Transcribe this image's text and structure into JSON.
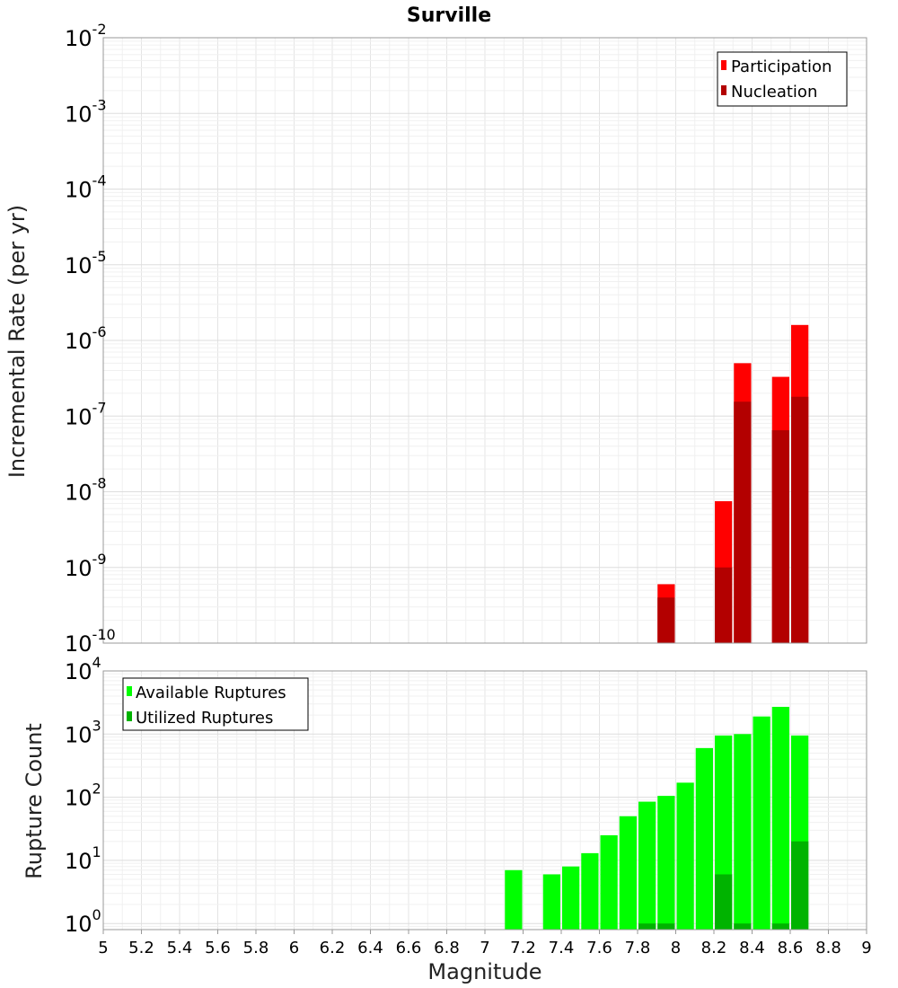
{
  "chart_data": [
    {
      "type": "bar",
      "title": "Surville",
      "xlabel": "",
      "ylabel": "Incremental Rate (per yr)",
      "yscale": "log",
      "ylim": [
        1e-10,
        0.01
      ],
      "xlim": [
        5,
        9
      ],
      "bin_width": 0.1,
      "grid": true,
      "legend": "top-right",
      "ytick_exponents": [
        -2,
        -3,
        -4,
        -5,
        -6,
        -7,
        -8,
        -9,
        -10
      ],
      "series": [
        {
          "name": "Participation",
          "color": "#ff0000",
          "points": [
            {
              "x": 7.95,
              "y": 6e-10
            },
            {
              "x": 8.25,
              "y": 7.5e-09
            },
            {
              "x": 8.35,
              "y": 5e-07
            },
            {
              "x": 8.55,
              "y": 3.3e-07
            },
            {
              "x": 8.65,
              "y": 1.6e-06
            }
          ]
        },
        {
          "name": "Nucleation",
          "color": "#b30000",
          "points": [
            {
              "x": 7.95,
              "y": 4e-10
            },
            {
              "x": 8.25,
              "y": 1e-09
            },
            {
              "x": 8.35,
              "y": 1.55e-07
            },
            {
              "x": 8.55,
              "y": 6.5e-08
            },
            {
              "x": 8.65,
              "y": 1.8e-07
            }
          ]
        }
      ]
    },
    {
      "type": "bar",
      "title": "",
      "xlabel": "Magnitude",
      "ylabel": "Rupture Count",
      "yscale": "log",
      "ylim": [
        0.8,
        10000
      ],
      "xlim": [
        5,
        9
      ],
      "bin_width": 0.1,
      "grid": true,
      "legend": "top-left",
      "ytick_exponents": [
        4,
        3,
        2,
        1,
        0
      ],
      "xticks": [
        "5",
        "5.2",
        "5.4",
        "5.6",
        "5.8",
        "6",
        "6.2",
        "6.4",
        "6.6",
        "6.8",
        "7",
        "7.2",
        "7.4",
        "7.6",
        "7.8",
        "8",
        "8.2",
        "8.4",
        "8.6",
        "8.8",
        "9"
      ],
      "series": [
        {
          "name": "Available Ruptures",
          "color": "#00ff00",
          "points": [
            {
              "x": 7.15,
              "y": 7
            },
            {
              "x": 7.35,
              "y": 6
            },
            {
              "x": 7.45,
              "y": 8
            },
            {
              "x": 7.55,
              "y": 13
            },
            {
              "x": 7.65,
              "y": 25
            },
            {
              "x": 7.75,
              "y": 50
            },
            {
              "x": 7.85,
              "y": 85
            },
            {
              "x": 7.95,
              "y": 105
            },
            {
              "x": 8.05,
              "y": 170
            },
            {
              "x": 8.15,
              "y": 600
            },
            {
              "x": 8.25,
              "y": 950
            },
            {
              "x": 8.35,
              "y": 1000
            },
            {
              "x": 8.45,
              "y": 1900
            },
            {
              "x": 8.55,
              "y": 2700
            },
            {
              "x": 8.65,
              "y": 950
            }
          ]
        },
        {
          "name": "Utilized Ruptures",
          "color": "#00b300",
          "points": [
            {
              "x": 7.85,
              "y": 1
            },
            {
              "x": 7.95,
              "y": 1
            },
            {
              "x": 8.25,
              "y": 6
            },
            {
              "x": 8.35,
              "y": 1
            },
            {
              "x": 8.55,
              "y": 1
            },
            {
              "x": 8.65,
              "y": 20
            }
          ]
        }
      ]
    }
  ],
  "base_label": "10"
}
